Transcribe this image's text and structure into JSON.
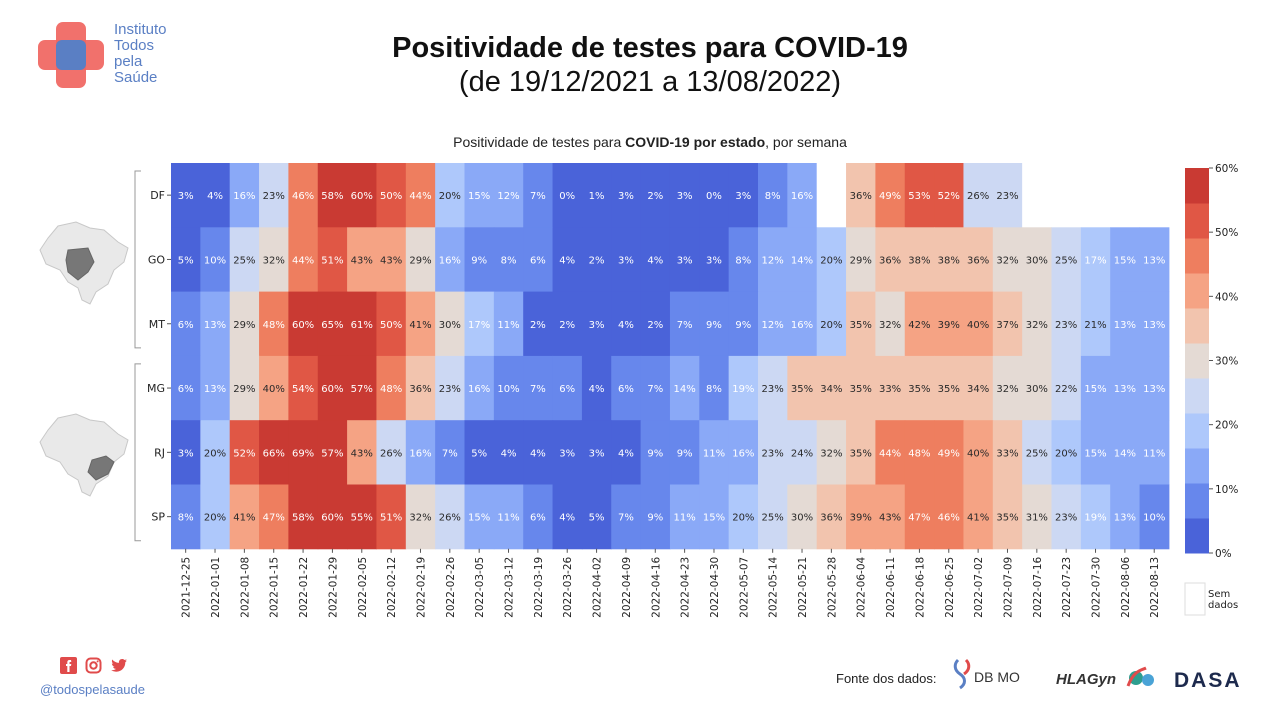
{
  "header": {
    "org_name_lines": [
      "Instituto",
      "Todos",
      "pela",
      "Saúde"
    ],
    "title": "Positividade de testes para COVID-19",
    "subtitle": "(de 19/12/2021 a 13/08/2022)"
  },
  "chart_title_parts": [
    "Positividade de testes para ",
    "COVID-19 por estado",
    ", por semana"
  ],
  "footer": {
    "handle": "@todospelasaude",
    "source_label": "Fonte dos dados:",
    "partners": [
      "DB MOLECULAR",
      "HLAGyn",
      "DASA"
    ],
    "social_icons": [
      "facebook-icon",
      "instagram-icon",
      "twitter-icon"
    ]
  },
  "chart_data": {
    "type": "heatmap",
    "title": "Positividade de testes para COVID-19 por estado, por semana",
    "x": [
      "2021-12-25",
      "2022-01-01",
      "2022-01-08",
      "2022-01-15",
      "2022-01-22",
      "2022-01-29",
      "2022-02-05",
      "2022-02-12",
      "2022-02-19",
      "2022-02-26",
      "2022-03-05",
      "2022-03-12",
      "2022-03-19",
      "2022-03-26",
      "2022-04-02",
      "2022-04-09",
      "2022-04-16",
      "2022-04-23",
      "2022-04-30",
      "2022-05-07",
      "2022-05-14",
      "2022-05-21",
      "2022-05-28",
      "2022-06-04",
      "2022-06-11",
      "2022-06-18",
      "2022-06-25",
      "2022-07-02",
      "2022-07-09",
      "2022-07-16",
      "2022-07-23",
      "2022-07-30",
      "2022-08-06",
      "2022-08-13"
    ],
    "y": [
      "DF",
      "GO",
      "MT",
      "MG",
      "RJ",
      "SP"
    ],
    "groups": [
      [
        "DF",
        "GO",
        "MT"
      ],
      [
        "MG",
        "RJ",
        "SP"
      ]
    ],
    "values": [
      [
        3,
        4,
        16,
        23,
        46,
        58,
        60,
        50,
        44,
        20,
        15,
        12,
        7,
        0,
        1,
        3,
        2,
        3,
        0,
        3,
        8,
        16,
        null,
        36,
        49,
        53,
        52,
        26,
        23,
        null,
        null,
        null,
        null,
        null
      ],
      [
        5,
        10,
        25,
        32,
        44,
        51,
        43,
        43,
        29,
        16,
        9,
        8,
        6,
        4,
        2,
        3,
        4,
        3,
        3,
        8,
        12,
        14,
        20,
        29,
        36,
        38,
        38,
        36,
        32,
        30,
        25,
        17,
        15,
        13
      ],
      [
        6,
        13,
        29,
        48,
        60,
        65,
        61,
        50,
        41,
        30,
        17,
        11,
        2,
        2,
        3,
        4,
        2,
        7,
        9,
        9,
        12,
        16,
        20,
        35,
        32,
        42,
        39,
        40,
        37,
        32,
        23,
        21,
        13,
        13
      ],
      [
        6,
        13,
        29,
        40,
        54,
        60,
        57,
        48,
        36,
        23,
        16,
        10,
        7,
        6,
        4,
        6,
        7,
        14,
        8,
        19,
        23,
        35,
        34,
        35,
        33,
        35,
        35,
        34,
        32,
        30,
        22,
        15,
        13,
        13
      ],
      [
        3,
        20,
        52,
        66,
        69,
        57,
        43,
        26,
        16,
        7,
        5,
        4,
        4,
        3,
        3,
        4,
        9,
        9,
        11,
        16,
        23,
        24,
        32,
        35,
        44,
        48,
        49,
        40,
        33,
        25,
        20,
        15,
        14,
        11
      ],
      [
        8,
        20,
        41,
        47,
        58,
        60,
        55,
        51,
        32,
        26,
        15,
        11,
        6,
        4,
        5,
        7,
        9,
        11,
        15,
        20,
        25,
        30,
        36,
        39,
        43,
        47,
        46,
        41,
        35,
        31,
        23,
        19,
        13,
        10
      ]
    ],
    "value_suffix": "%",
    "colorbar": {
      "ticks": [
        "0%",
        "10%",
        "20%",
        "30%",
        "40%",
        "50%",
        "60%"
      ],
      "range": [
        0,
        60
      ],
      "colors": [
        "#4a63d9",
        "#6787ec",
        "#8aa9f7",
        "#aec8fb",
        "#ccd8f3",
        "#e4dad4",
        "#f2c4ae",
        "#f5a384",
        "#ee7e5f",
        "#e05745",
        "#c93a33"
      ]
    },
    "missing_label": [
      "Sem",
      "dados"
    ]
  }
}
